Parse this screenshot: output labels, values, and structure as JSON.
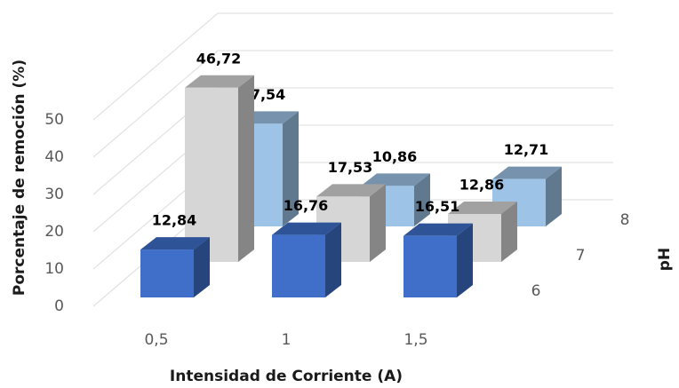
{
  "chart_data": {
    "type": "bar3d",
    "x_label": "Intensidad de Corriente (A)",
    "y_label": "Porcentaje de remoción (%)",
    "z_label": "pH",
    "categories": [
      "0,5",
      "1",
      "1,5"
    ],
    "series": [
      {
        "name": "6",
        "color": "#3f6fc9",
        "values": [
          12.84,
          16.76,
          16.51
        ],
        "value_labels": [
          "12,84",
          "16,76",
          "16,51"
        ]
      },
      {
        "name": "7",
        "color": "#d6d6d6",
        "values": [
          46.72,
          17.53,
          12.86
        ],
        "value_labels": [
          "46,72",
          "17,53",
          "12,86"
        ]
      },
      {
        "name": "8",
        "color": "#9dc3e6",
        "values": [
          27.54,
          10.86,
          12.71
        ],
        "value_labels": [
          "27,54",
          "10,86",
          "12,71"
        ]
      }
    ],
    "ylim": [
      0,
      50
    ],
    "yticks": [
      0,
      10,
      20,
      30,
      40,
      50
    ],
    "grid": true
  }
}
